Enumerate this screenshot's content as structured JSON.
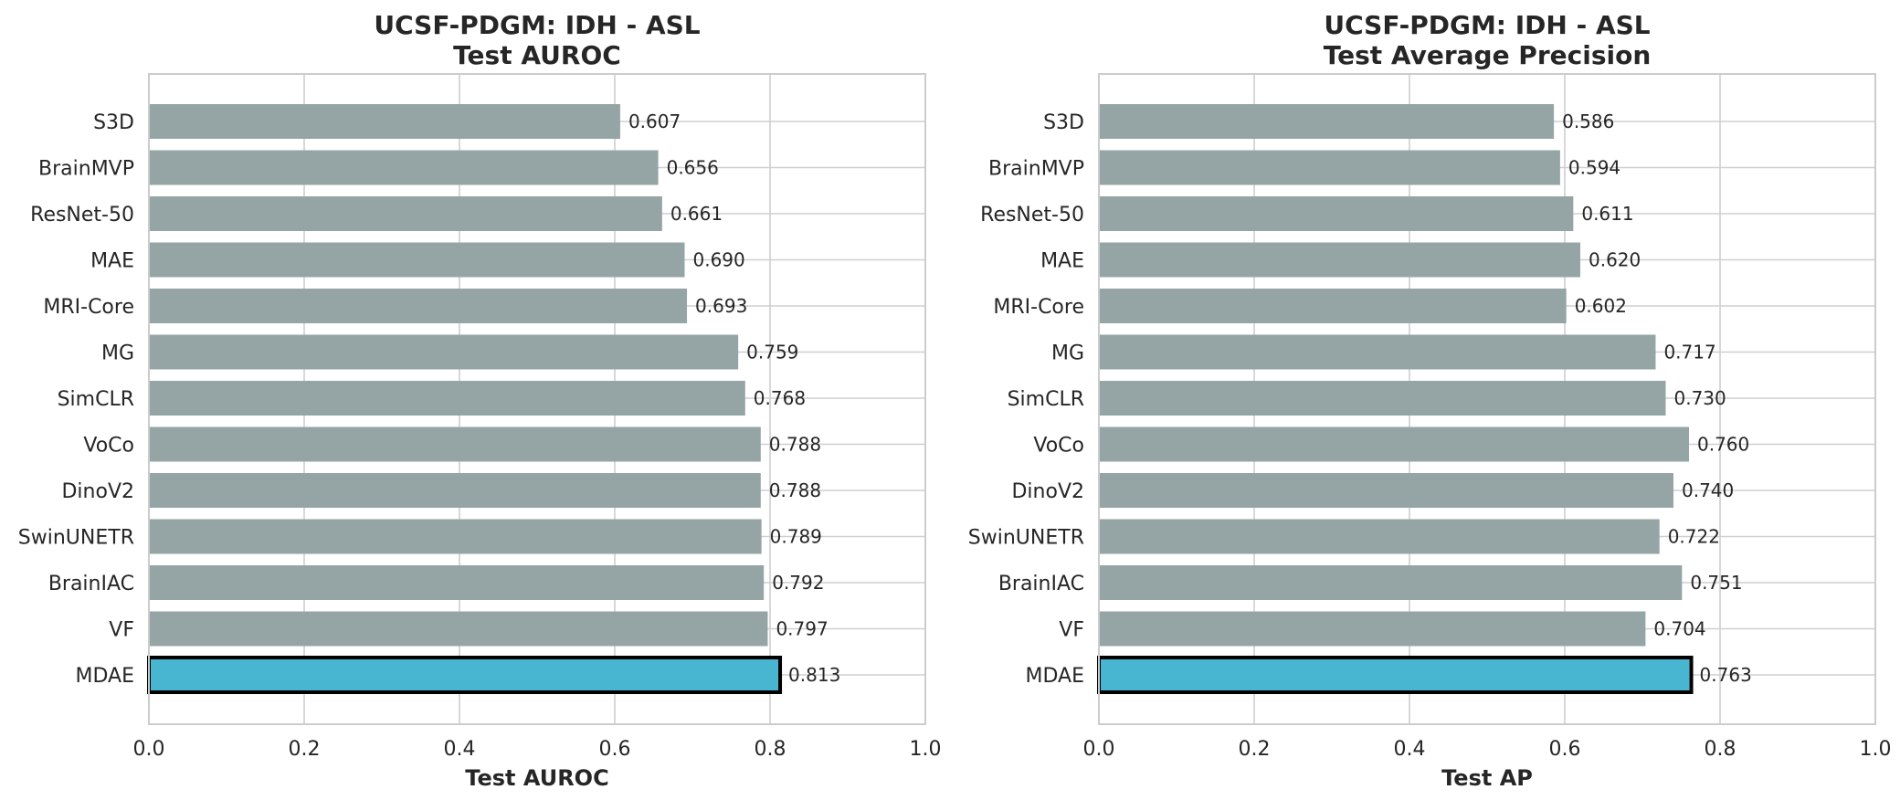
{
  "chart_data": [
    {
      "type": "bar",
      "orientation": "horizontal",
      "title": "UCSF-PDGM: IDH - ASL\nTest AUROC",
      "xlabel": "Test AUROC",
      "ylabel": "",
      "xlim": [
        0.0,
        1.0
      ],
      "xticks": [
        "0.0",
        "0.2",
        "0.4",
        "0.6",
        "0.8",
        "1.0"
      ],
      "grid": true,
      "categories": [
        "S3D",
        "BrainMVP",
        "ResNet-50",
        "MAE",
        "MRI-Core",
        "MG",
        "SimCLR",
        "VoCo",
        "DinoV2",
        "SwinUNETR",
        "BrainIAC",
        "VF",
        "MDAE"
      ],
      "values": [
        0.607,
        0.656,
        0.661,
        0.69,
        0.693,
        0.759,
        0.768,
        0.788,
        0.788,
        0.789,
        0.792,
        0.797,
        0.813
      ],
      "value_labels": [
        "0.607",
        "0.656",
        "0.661",
        "0.690",
        "0.693",
        "0.759",
        "0.768",
        "0.788",
        "0.788",
        "0.789",
        "0.792",
        "0.797",
        "0.813"
      ],
      "highlight": "MDAE"
    },
    {
      "type": "bar",
      "orientation": "horizontal",
      "title": "UCSF-PDGM: IDH - ASL\nTest Average Precision",
      "xlabel": "Test AP",
      "ylabel": "",
      "xlim": [
        0.0,
        1.0
      ],
      "xticks": [
        "0.0",
        "0.2",
        "0.4",
        "0.6",
        "0.8",
        "1.0"
      ],
      "grid": true,
      "categories": [
        "S3D",
        "BrainMVP",
        "ResNet-50",
        "MAE",
        "MRI-Core",
        "MG",
        "SimCLR",
        "VoCo",
        "DinoV2",
        "SwinUNETR",
        "BrainIAC",
        "VF",
        "MDAE"
      ],
      "values": [
        0.586,
        0.594,
        0.611,
        0.62,
        0.602,
        0.717,
        0.73,
        0.76,
        0.74,
        0.722,
        0.751,
        0.704,
        0.763
      ],
      "value_labels": [
        "0.586",
        "0.594",
        "0.611",
        "0.620",
        "0.602",
        "0.717",
        "0.730",
        "0.760",
        "0.740",
        "0.722",
        "0.751",
        "0.704",
        "0.763"
      ],
      "highlight": "MDAE"
    }
  ],
  "colors": {
    "bar": "#95a5a6",
    "highlight": "#48b5d1",
    "highlight_edge": "#000000",
    "grid": "#cfcfcf",
    "frame": "#cccccc",
    "text": "#262626"
  }
}
